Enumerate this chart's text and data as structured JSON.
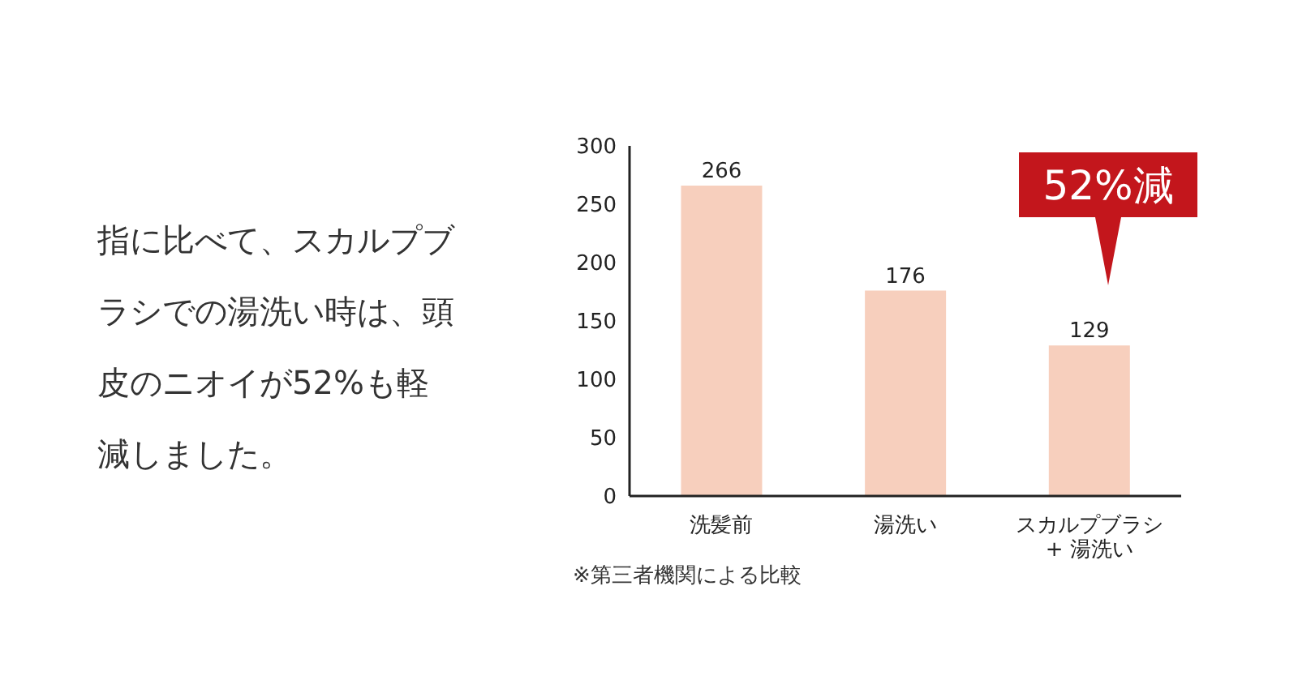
{
  "chart_data": {
    "type": "bar",
    "categories": [
      "洗髪前",
      "湯洗い",
      "スカルプブラシ + 湯洗い"
    ],
    "values": [
      266,
      176,
      129
    ],
    "color": "#f7cfbd",
    "ylim": [
      0,
      300
    ],
    "yticks": [
      0,
      50,
      100,
      150,
      200,
      250,
      300
    ],
    "grid": false,
    "legend": false,
    "data_labels": true,
    "annotations": [
      "指に比べて、スカルプブラシでの湯洗い時は、頭皮のニオイが52%も軽減しました。",
      "52%減",
      "※第三者機関による比較"
    ]
  }
}
